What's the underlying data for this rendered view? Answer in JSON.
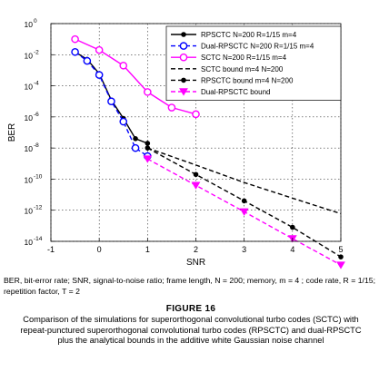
{
  "chart_data": {
    "type": "line",
    "xlabel": "SNR",
    "ylabel": "BER",
    "xlim": [
      -1,
      5
    ],
    "ylim_log10": [
      -14,
      0
    ],
    "yscale": "log",
    "grid": true,
    "legend_position": "top-right",
    "x_ticks": [
      "-1",
      "0",
      "1",
      "2",
      "3",
      "4",
      "5"
    ],
    "y_ticks": [
      {
        "base": "10",
        "exp": "0"
      },
      {
        "base": "10",
        "exp": "-2"
      },
      {
        "base": "10",
        "exp": "-4"
      },
      {
        "base": "10",
        "exp": "-6"
      },
      {
        "base": "10",
        "exp": "-8"
      },
      {
        "base": "10",
        "exp": "-10"
      },
      {
        "base": "10",
        "exp": "-12"
      },
      {
        "base": "10",
        "exp": "-14"
      }
    ],
    "series": [
      {
        "name": "RPSCTC N=200 R=1/15 m=4",
        "color": "#000000",
        "dash": "solid",
        "marker": "dot",
        "x": [
          -0.5,
          -0.25,
          0,
          0.25,
          0.5,
          0.75,
          1
        ],
        "y": [
          0.015,
          0.005,
          0.0006,
          1.2e-05,
          8e-07,
          4e-08,
          2e-08
        ]
      },
      {
        "name": "Dual-RPSCTC N=200 R=1/15 m=4",
        "color": "#0000ff",
        "dash": "dashed",
        "marker": "circle",
        "x": [
          -0.5,
          -0.25,
          0,
          0.25,
          0.5,
          0.75,
          1
        ],
        "y": [
          0.015,
          0.004,
          0.0005,
          1e-05,
          5e-07,
          1e-08,
          3e-09
        ]
      },
      {
        "name": "SCTC N=200 R=1/15 m=4",
        "color": "#ff00ff",
        "dash": "solid",
        "marker": "circle",
        "x": [
          -0.5,
          0,
          0.5,
          1,
          1.5,
          2
        ],
        "y": [
          0.1,
          0.02,
          0.002,
          4e-05,
          4e-06,
          1.5e-06
        ]
      },
      {
        "name": "SCTC bound m=4 N=200",
        "color": "#000000",
        "dash": "dashed",
        "marker": "none",
        "x": [
          1,
          2,
          3,
          4,
          5
        ],
        "y": [
          1e-08,
          8e-10,
          6e-11,
          6e-12,
          6e-13
        ]
      },
      {
        "name": "RPSCTC bound m=4 N=200",
        "color": "#000000",
        "dash": "dashed",
        "marker": "dot",
        "x": [
          1,
          2,
          3,
          4,
          5
        ],
        "y": [
          1e-08,
          2e-10,
          4e-12,
          8e-14,
          1e-15
        ]
      },
      {
        "name": "Dual-RPSCTC bound",
        "color": "#ff00ff",
        "dash": "dashed",
        "marker": "triangle-down",
        "x": [
          1,
          2,
          3,
          4,
          5
        ],
        "y": [
          2e-09,
          4e-11,
          8e-13,
          1.5e-14,
          3e-16
        ]
      }
    ]
  },
  "caption": {
    "abbreviations": "BER, bit-error rate; SNR, signal-to-noise ratio; frame length, N = 200; memory, m = 4 ; code rate, R = 1/15; repetition factor, T = 2",
    "figure_label": "FIGURE 16",
    "text": "Comparison of the simulations for superorthogonal convolutional turbo codes (SCTC) with repeat-punctured superorthogonal convolutional turbo codes (RPSCTC) and dual-RPSCTC plus the analytical bounds in the additive white Gaussian noise channel"
  }
}
